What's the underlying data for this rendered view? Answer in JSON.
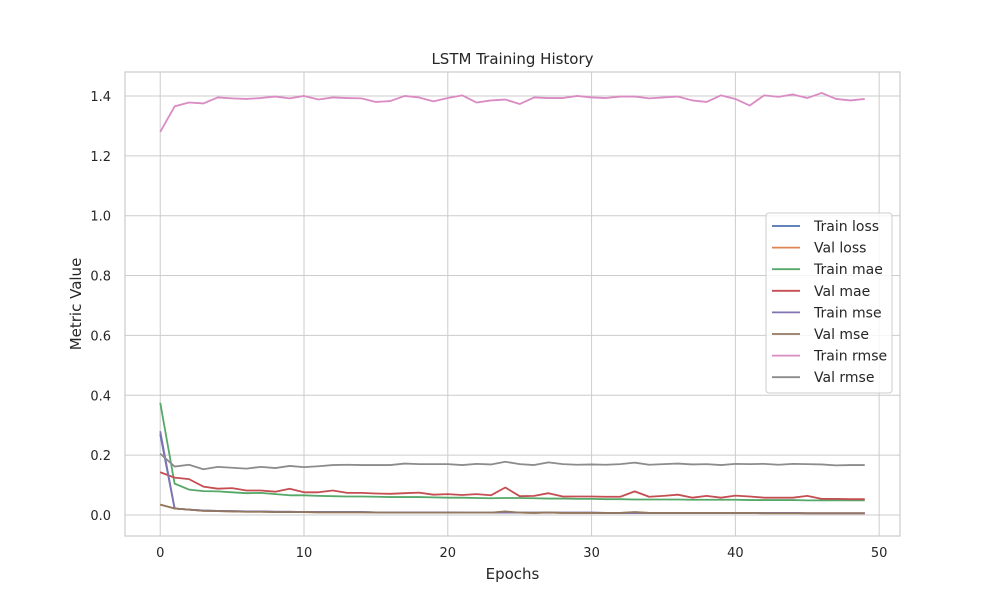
{
  "chart_data": {
    "type": "line",
    "title": "LSTM Training History",
    "xlabel": "Epochs",
    "ylabel": "Metric Value",
    "xlim": [
      -2.45,
      51.45
    ],
    "ylim": [
      -0.07,
      1.48
    ],
    "xticks": [
      0,
      10,
      20,
      30,
      40,
      50
    ],
    "yticks": [
      0.0,
      0.2,
      0.4,
      0.6,
      0.8,
      1.0,
      1.2,
      1.4
    ],
    "grid": true,
    "legend_position": "center-right",
    "x": [
      0,
      1,
      2,
      3,
      4,
      5,
      6,
      7,
      8,
      9,
      10,
      11,
      12,
      13,
      14,
      15,
      16,
      17,
      18,
      19,
      20,
      21,
      22,
      23,
      24,
      25,
      26,
      27,
      28,
      29,
      30,
      31,
      32,
      33,
      34,
      35,
      36,
      37,
      38,
      39,
      40,
      41,
      42,
      43,
      44,
      45,
      46,
      47,
      48,
      49
    ],
    "series": [
      {
        "name": "Train loss",
        "color": "#4c72b0",
        "values": [
          0.27,
          0.022,
          0.018,
          0.015,
          0.014,
          0.013,
          0.012,
          0.012,
          0.011,
          0.011,
          0.01,
          0.01,
          0.01,
          0.01,
          0.01,
          0.009,
          0.009,
          0.009,
          0.009,
          0.009,
          0.009,
          0.008,
          0.008,
          0.008,
          0.008,
          0.008,
          0.008,
          0.008,
          0.008,
          0.008,
          0.008,
          0.007,
          0.007,
          0.007,
          0.007,
          0.007,
          0.007,
          0.007,
          0.007,
          0.007,
          0.007,
          0.007,
          0.007,
          0.007,
          0.007,
          0.006,
          0.006,
          0.006,
          0.006,
          0.006
        ]
      },
      {
        "name": "Val loss",
        "color": "#dd8452",
        "values": [
          0.035,
          0.022,
          0.018,
          0.014,
          0.013,
          0.012,
          0.011,
          0.011,
          0.01,
          0.01,
          0.01,
          0.009,
          0.009,
          0.009,
          0.009,
          0.009,
          0.008,
          0.008,
          0.008,
          0.008,
          0.008,
          0.008,
          0.008,
          0.008,
          0.01,
          0.008,
          0.007,
          0.008,
          0.007,
          0.007,
          0.007,
          0.007,
          0.007,
          0.009,
          0.007,
          0.007,
          0.007,
          0.007,
          0.007,
          0.007,
          0.007,
          0.007,
          0.006,
          0.006,
          0.006,
          0.006,
          0.006,
          0.006,
          0.006,
          0.006
        ]
      },
      {
        "name": "Train mae",
        "color": "#55a868",
        "values": [
          0.375,
          0.105,
          0.085,
          0.08,
          0.079,
          0.076,
          0.073,
          0.074,
          0.07,
          0.066,
          0.066,
          0.064,
          0.063,
          0.062,
          0.062,
          0.061,
          0.06,
          0.06,
          0.06,
          0.059,
          0.058,
          0.058,
          0.057,
          0.056,
          0.057,
          0.057,
          0.056,
          0.055,
          0.055,
          0.054,
          0.054,
          0.053,
          0.053,
          0.052,
          0.052,
          0.052,
          0.052,
          0.051,
          0.051,
          0.051,
          0.051,
          0.05,
          0.05,
          0.05,
          0.05,
          0.049,
          0.049,
          0.049,
          0.049,
          0.049
        ]
      },
      {
        "name": "Val mae",
        "color": "#c44e52",
        "values": [
          0.143,
          0.125,
          0.12,
          0.095,
          0.088,
          0.09,
          0.082,
          0.082,
          0.078,
          0.088,
          0.076,
          0.076,
          0.082,
          0.074,
          0.074,
          0.072,
          0.071,
          0.073,
          0.075,
          0.068,
          0.07,
          0.067,
          0.07,
          0.066,
          0.092,
          0.063,
          0.064,
          0.073,
          0.062,
          0.062,
          0.062,
          0.061,
          0.061,
          0.079,
          0.061,
          0.064,
          0.068,
          0.058,
          0.064,
          0.058,
          0.065,
          0.062,
          0.058,
          0.058,
          0.058,
          0.064,
          0.054,
          0.054,
          0.053,
          0.053
        ]
      },
      {
        "name": "Train mse",
        "color": "#8172b3",
        "values": [
          0.28,
          0.022,
          0.018,
          0.015,
          0.014,
          0.013,
          0.012,
          0.012,
          0.011,
          0.011,
          0.01,
          0.01,
          0.01,
          0.01,
          0.01,
          0.009,
          0.009,
          0.009,
          0.009,
          0.009,
          0.009,
          0.008,
          0.008,
          0.008,
          0.008,
          0.008,
          0.008,
          0.008,
          0.008,
          0.008,
          0.008,
          0.007,
          0.007,
          0.007,
          0.007,
          0.007,
          0.007,
          0.007,
          0.007,
          0.007,
          0.007,
          0.007,
          0.007,
          0.007,
          0.007,
          0.006,
          0.006,
          0.006,
          0.006,
          0.006
        ]
      },
      {
        "name": "Val mse",
        "color": "#937860",
        "values": [
          0.035,
          0.022,
          0.018,
          0.014,
          0.013,
          0.012,
          0.011,
          0.011,
          0.01,
          0.01,
          0.01,
          0.009,
          0.009,
          0.009,
          0.009,
          0.009,
          0.008,
          0.008,
          0.008,
          0.008,
          0.008,
          0.008,
          0.008,
          0.008,
          0.012,
          0.008,
          0.007,
          0.009,
          0.007,
          0.007,
          0.007,
          0.007,
          0.007,
          0.01,
          0.007,
          0.007,
          0.007,
          0.007,
          0.007,
          0.007,
          0.007,
          0.007,
          0.006,
          0.006,
          0.006,
          0.006,
          0.006,
          0.006,
          0.006,
          0.006
        ]
      },
      {
        "name": "Train rmse",
        "color": "#da8bc3",
        "values": [
          1.28,
          1.365,
          1.378,
          1.375,
          1.395,
          1.392,
          1.39,
          1.393,
          1.398,
          1.392,
          1.4,
          1.388,
          1.395,
          1.393,
          1.392,
          1.38,
          1.383,
          1.4,
          1.395,
          1.382,
          1.393,
          1.402,
          1.378,
          1.385,
          1.388,
          1.373,
          1.395,
          1.393,
          1.393,
          1.4,
          1.395,
          1.393,
          1.398,
          1.398,
          1.392,
          1.395,
          1.398,
          1.385,
          1.38,
          1.402,
          1.39,
          1.368,
          1.402,
          1.397,
          1.405,
          1.393,
          1.41,
          1.39,
          1.385,
          1.39
        ]
      },
      {
        "name": "Val rmse",
        "color": "#8c8c8c",
        "values": [
          0.205,
          0.162,
          0.168,
          0.153,
          0.161,
          0.158,
          0.155,
          0.161,
          0.157,
          0.164,
          0.16,
          0.163,
          0.167,
          0.168,
          0.167,
          0.167,
          0.167,
          0.172,
          0.17,
          0.17,
          0.17,
          0.167,
          0.171,
          0.169,
          0.178,
          0.17,
          0.167,
          0.176,
          0.17,
          0.168,
          0.169,
          0.168,
          0.17,
          0.175,
          0.168,
          0.17,
          0.172,
          0.169,
          0.17,
          0.167,
          0.171,
          0.17,
          0.171,
          0.168,
          0.171,
          0.17,
          0.169,
          0.166,
          0.167,
          0.167
        ]
      }
    ]
  }
}
